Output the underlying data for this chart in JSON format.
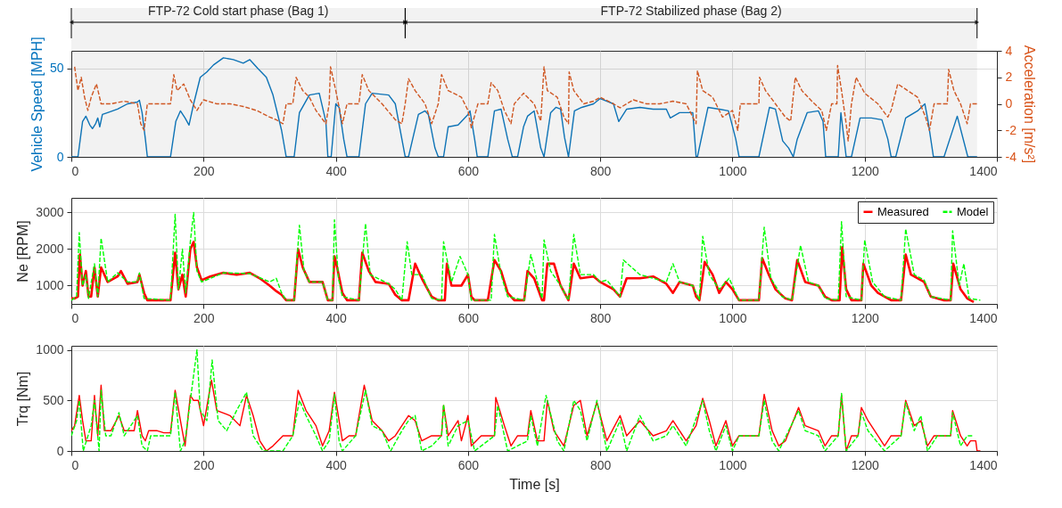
{
  "chart_data": [
    {
      "type": "line",
      "xlim": [
        0,
        1400
      ],
      "xticks": [
        0,
        200,
        400,
        600,
        800,
        1000,
        1200,
        1400
      ],
      "ylim": [
        0,
        60
      ],
      "yticks": [
        0,
        50
      ],
      "y2lim": [
        -4,
        4
      ],
      "y2ticks": [
        -4,
        -2,
        0,
        2,
        4
      ],
      "ylabel": "Vehicle Speed [MPH]",
      "y2label": "Acceleration [m/s²]",
      "grid": true,
      "legend": false,
      "bands": [
        {
          "axis": "x",
          "from": 0,
          "to": 505,
          "label": "FTP-72 Cold start phase (Bag 1)"
        },
        {
          "axis": "x",
          "from": 505,
          "to": 1370,
          "label": "FTP-72 Stabilized phase (Bag 2)"
        }
      ],
      "series": [
        {
          "color": "#0072bd",
          "line_style": "solid",
          "x": [
            0,
            10,
            17,
            22,
            28,
            32,
            37,
            40,
            43,
            47,
            55,
            70,
            85,
            100,
            103,
            107,
            112,
            115,
            150,
            158,
            165,
            172,
            178,
            185,
            195,
            205,
            215,
            230,
            245,
            260,
            270,
            282,
            295,
            305,
            318,
            325,
            337,
            345,
            360,
            375,
            385,
            388,
            393,
            400,
            405,
            412,
            417,
            435,
            445,
            455,
            480,
            490,
            500,
            505,
            510,
            525,
            535,
            540,
            550,
            555,
            563,
            570,
            585,
            600,
            603,
            610,
            614,
            630,
            640,
            650,
            660,
            667,
            675,
            684,
            690,
            700,
            710,
            715,
            725,
            733,
            740,
            746,
            752,
            761,
            772,
            790,
            800,
            820,
            828,
            840,
            860,
            880,
            900,
            906,
            920,
            940,
            945,
            947,
            963,
            980,
            994,
            1005,
            1010,
            1040,
            1056,
            1065,
            1076,
            1085,
            1092,
            1098,
            1113,
            1130,
            1137,
            1141,
            1160,
            1164,
            1172,
            1180,
            1193,
            1210,
            1226,
            1235,
            1240,
            1247,
            1262,
            1280,
            1291,
            1296,
            1304,
            1320,
            1340,
            1356,
            1370
          ],
          "values": [
            0,
            0,
            20,
            23,
            18,
            16,
            19,
            22,
            17,
            24,
            25,
            27,
            30,
            31,
            32,
            25,
            10,
            0,
            0,
            20,
            26,
            22,
            18,
            30,
            45,
            48,
            52,
            56,
            55,
            53,
            55,
            50,
            45,
            35,
            15,
            0,
            0,
            25,
            35,
            36,
            20,
            0,
            0,
            30,
            28,
            10,
            0,
            0,
            30,
            36,
            35,
            30,
            10,
            0,
            0,
            24,
            26,
            24,
            5,
            0,
            0,
            17,
            18,
            24,
            26,
            10,
            0,
            0,
            26,
            27,
            10,
            0,
            0,
            17,
            23,
            26,
            5,
            0,
            25,
            28,
            27,
            11,
            0,
            26,
            28,
            30,
            33,
            30,
            20,
            27,
            28,
            27,
            27,
            22,
            25,
            25,
            0,
            0,
            28,
            27,
            26,
            10,
            0,
            0,
            28,
            27,
            9,
            5,
            0,
            10,
            25,
            26,
            20,
            0,
            0,
            25,
            0,
            0,
            22,
            22,
            21,
            10,
            0,
            0,
            22,
            26,
            30,
            20,
            0,
            0,
            23,
            0,
            0
          ]
        },
        {
          "color": "#d95319",
          "line_style": "dashed",
          "axis": "y2",
          "x": [
            5,
            10,
            15,
            20,
            25,
            30,
            38,
            45,
            60,
            80,
            100,
            105,
            110,
            115,
            150,
            155,
            160,
            170,
            180,
            190,
            200,
            220,
            240,
            260,
            280,
            300,
            310,
            320,
            325,
            335,
            340,
            350,
            360,
            370,
            385,
            390,
            392,
            400,
            410,
            417,
            435,
            440,
            450,
            470,
            490,
            500,
            505,
            510,
            520,
            535,
            545,
            555,
            560,
            570,
            590,
            600,
            605,
            615,
            630,
            635,
            645,
            655,
            665,
            670,
            684,
            700,
            710,
            715,
            720,
            735,
            745,
            752,
            753,
            760,
            775,
            790,
            800,
            820,
            830,
            850,
            870,
            890,
            910,
            930,
            945,
            947,
            955,
            970,
            985,
            1000,
            1008,
            1012,
            1040,
            1041,
            1050,
            1065,
            1080,
            1088,
            1095,
            1105,
            1120,
            1135,
            1142,
            1150,
            1158,
            1159,
            1165,
            1172,
            1175,
            1180,
            1187,
            1200,
            1220,
            1235,
            1240,
            1250,
            1265,
            1280,
            1292,
            1298,
            1305,
            1325,
            1327,
            1335,
            1345,
            1355,
            1360,
            1370
          ],
          "values": [
            2.8,
            1,
            2,
            0.5,
            -0.5,
            0.5,
            1.5,
            0,
            0,
            0.2,
            0,
            -1.5,
            -2,
            0,
            0,
            2.2,
            1,
            1.5,
            0.3,
            -0.5,
            0.3,
            0,
            0,
            -0.2,
            -0.5,
            -1,
            -1.2,
            -1.5,
            0,
            0,
            2,
            1,
            0.5,
            -0.5,
            -1.5,
            0,
            2.8,
            1,
            -1.5,
            0,
            0,
            2.2,
            1,
            0,
            -1.2,
            -1.5,
            0,
            1.9,
            1,
            0,
            -1.5,
            0,
            2.2,
            1,
            0.5,
            -0.5,
            -1.8,
            0,
            0,
            1.6,
            1,
            -0.5,
            -1.5,
            0,
            0.8,
            0,
            -1.3,
            2.8,
            1,
            0.5,
            -1,
            -1.5,
            2.4,
            1,
            0,
            0.2,
            0.5,
            0,
            -0.3,
            0.3,
            0,
            0,
            0.2,
            0,
            -1.5,
            2.5,
            1,
            0.5,
            -1,
            -0.5,
            -2,
            0,
            0,
            2,
            1,
            0,
            -1,
            -1.3,
            2,
            1,
            0.2,
            -0.5,
            -2,
            0,
            0,
            2.9,
            1,
            -1.5,
            -2.8,
            0,
            2,
            0.8,
            0,
            -1,
            -0.5,
            1.5,
            1,
            0.5,
            -1,
            -2,
            0,
            0,
            2.6,
            1,
            0,
            -1.5,
            0,
            0
          ]
        }
      ]
    },
    {
      "type": "line",
      "xlim": [
        0,
        1400
      ],
      "xticks": [
        0,
        200,
        400,
        600,
        800,
        1000,
        1200,
        1400
      ],
      "ylim": [
        500,
        3400
      ],
      "yticks": [
        1000,
        2000,
        3000
      ],
      "ylabel": "Ne [RPM]",
      "grid": true,
      "legend": "top right",
      "series": [
        {
          "name": "Measured",
          "color": "#ff0000",
          "line_style": "solid",
          "x": [
            0,
            5,
            10,
            13,
            17,
            22,
            26,
            30,
            35,
            40,
            45,
            55,
            70,
            75,
            85,
            100,
            103,
            110,
            115,
            150,
            157,
            162,
            168,
            173,
            180,
            185,
            190,
            197,
            210,
            230,
            250,
            270,
            285,
            300,
            310,
            318,
            325,
            337,
            343,
            350,
            360,
            380,
            388,
            395,
            398,
            402,
            410,
            417,
            435,
            440,
            450,
            460,
            480,
            490,
            500,
            510,
            520,
            530,
            545,
            555,
            565,
            568,
            575,
            590,
            600,
            605,
            610,
            630,
            640,
            650,
            660,
            670,
            685,
            690,
            700,
            712,
            715,
            720,
            730,
            740,
            752,
            760,
            770,
            790,
            800,
            820,
            830,
            840,
            860,
            880,
            900,
            910,
            920,
            940,
            945,
            950,
            958,
            970,
            980,
            990,
            1000,
            1010,
            1040,
            1045,
            1055,
            1065,
            1080,
            1090,
            1098,
            1110,
            1130,
            1140,
            1150,
            1162,
            1166,
            1172,
            1180,
            1195,
            1198,
            1210,
            1220,
            1240,
            1255,
            1262,
            1270,
            1290,
            1300,
            1320,
            1330,
            1334,
            1345,
            1355,
            1365
          ],
          "values": [
            650,
            650,
            700,
            1850,
            1000,
            1400,
            700,
            700,
            1500,
            700,
            1500,
            1100,
            1250,
            1400,
            1050,
            1100,
            1300,
            800,
            600,
            600,
            1900,
            900,
            1300,
            700,
            2000,
            2200,
            1500,
            1150,
            1250,
            1350,
            1300,
            1350,
            1200,
            1000,
            850,
            750,
            600,
            600,
            2000,
            1500,
            1100,
            1100,
            600,
            600,
            1800,
            1500,
            800,
            600,
            600,
            1900,
            1400,
            1100,
            1050,
            750,
            600,
            600,
            1600,
            1200,
            700,
            600,
            600,
            1600,
            1000,
            1000,
            1300,
            700,
            600,
            600,
            1700,
            1400,
            800,
            600,
            600,
            1400,
            1200,
            600,
            600,
            1600,
            1600,
            1000,
            600,
            1600,
            1200,
            1250,
            1100,
            900,
            700,
            1200,
            1200,
            1250,
            1050,
            800,
            1100,
            1000,
            700,
            600,
            1650,
            1300,
            800,
            1100,
            900,
            600,
            600,
            1750,
            1300,
            900,
            650,
            600,
            1700,
            1100,
            1000,
            700,
            600,
            600,
            2050,
            900,
            600,
            600,
            1600,
            1000,
            800,
            600,
            600,
            1850,
            1300,
            1100,
            700,
            600,
            600,
            1600,
            900,
            650,
            550
          ]
        },
        {
          "name": "Model",
          "color": "#00ff00",
          "line_style": "dashed",
          "x": [
            0,
            8,
            12,
            17,
            22,
            26,
            35,
            40,
            45,
            55,
            70,
            85,
            100,
            103,
            110,
            150,
            157,
            162,
            168,
            173,
            180,
            185,
            190,
            197,
            230,
            270,
            300,
            310,
            318,
            325,
            337,
            345,
            352,
            360,
            380,
            388,
            395,
            398,
            404,
            410,
            435,
            445,
            452,
            480,
            490,
            500,
            508,
            515,
            530,
            545,
            560,
            563,
            575,
            588,
            600,
            605,
            635,
            640,
            650,
            660,
            685,
            695,
            705,
            712,
            715,
            725,
            740,
            752,
            760,
            770,
            790,
            800,
            810,
            830,
            835,
            860,
            880,
            900,
            910,
            920,
            940,
            950,
            955,
            965,
            980,
            995,
            1010,
            1040,
            1048,
            1058,
            1075,
            1090,
            1103,
            1115,
            1130,
            1140,
            1160,
            1165,
            1172,
            1195,
            1200,
            1212,
            1230,
            1255,
            1262,
            1275,
            1290,
            1300,
            1330,
            1333,
            1343,
            1350,
            1358,
            1375
          ],
          "values": [
            600,
            700,
            2450,
            1000,
            1300,
            650,
            1600,
            700,
            2300,
            1100,
            1350,
            1100,
            1100,
            1350,
            650,
            600,
            2950,
            900,
            2000,
            800,
            2200,
            3000,
            1400,
            1100,
            1350,
            1330,
            1100,
            1200,
            800,
            600,
            600,
            2650,
            1400,
            1100,
            1100,
            600,
            600,
            2800,
            1200,
            700,
            600,
            2700,
            1300,
            1050,
            900,
            600,
            2200,
            1300,
            1300,
            650,
            600,
            2200,
            1100,
            1800,
            1300,
            600,
            600,
            2400,
            1300,
            700,
            600,
            1850,
            1100,
            650,
            2250,
            1400,
            1000,
            600,
            2400,
            1300,
            1300,
            1100,
            1150,
            700,
            1700,
            1300,
            1200,
            1100,
            1600,
            1100,
            1000,
            600,
            2350,
            1300,
            900,
            1200,
            600,
            600,
            2600,
            1200,
            700,
            600,
            2100,
            1100,
            1000,
            650,
            600,
            2750,
            700,
            600,
            2250,
            1100,
            700,
            600,
            2550,
            1300,
            1150,
            700,
            600,
            2500,
            1000,
            1600,
            650,
            600
          ]
        }
      ]
    },
    {
      "type": "line",
      "xlim": [
        0,
        1400
      ],
      "xticks": [
        0,
        200,
        400,
        600,
        800,
        1000,
        1200,
        1400
      ],
      "ylim": [
        0,
        1040
      ],
      "yticks": [
        0,
        500,
        1000
      ],
      "xlabel": "Time [s]",
      "ylabel": "Trq [Nm]",
      "grid": true,
      "legend": false,
      "series": [
        {
          "color": "#ff0000",
          "line_style": "solid",
          "x": [
            0,
            5,
            12,
            17,
            22,
            30,
            35,
            40,
            45,
            50,
            60,
            72,
            80,
            95,
            100,
            107,
            112,
            117,
            130,
            140,
            150,
            157,
            165,
            172,
            180,
            185,
            192,
            200,
            212,
            220,
            240,
            255,
            265,
            275,
            285,
            295,
            305,
            320,
            335,
            343,
            355,
            370,
            380,
            390,
            398,
            405,
            410,
            420,
            430,
            443,
            455,
            470,
            480,
            490,
            500,
            510,
            520,
            530,
            545,
            560,
            563,
            570,
            585,
            590,
            600,
            605,
            620,
            640,
            642,
            655,
            665,
            675,
            690,
            695,
            705,
            715,
            720,
            730,
            745,
            760,
            770,
            780,
            795,
            810,
            830,
            840,
            860,
            880,
            900,
            910,
            930,
            945,
            955,
            965,
            975,
            990,
            1000,
            1010,
            1040,
            1048,
            1060,
            1070,
            1080,
            1100,
            1110,
            1130,
            1140,
            1150,
            1160,
            1165,
            1172,
            1180,
            1190,
            1195,
            1205,
            1220,
            1230,
            1240,
            1255,
            1262,
            1275,
            1285,
            1295,
            1305,
            1330,
            1333,
            1345,
            1355,
            1360,
            1368,
            1370,
            1375
          ],
          "values": [
            200,
            250,
            550,
            300,
            100,
            100,
            550,
            150,
            650,
            200,
            200,
            350,
            200,
            200,
            400,
            150,
            100,
            200,
            200,
            180,
            180,
            600,
            300,
            50,
            550,
            500,
            500,
            250,
            700,
            400,
            350,
            250,
            550,
            350,
            100,
            0,
            50,
            150,
            150,
            600,
            400,
            250,
            50,
            200,
            580,
            300,
            100,
            150,
            150,
            650,
            300,
            200,
            100,
            150,
            250,
            350,
            300,
            100,
            150,
            150,
            450,
            150,
            300,
            100,
            350,
            50,
            150,
            150,
            530,
            250,
            50,
            150,
            150,
            400,
            100,
            100,
            500,
            200,
            50,
            450,
            500,
            150,
            480,
            100,
            350,
            150,
            300,
            150,
            200,
            300,
            100,
            250,
            520,
            300,
            50,
            300,
            50,
            150,
            150,
            560,
            200,
            50,
            100,
            430,
            250,
            200,
            50,
            150,
            150,
            550,
            0,
            150,
            150,
            430,
            300,
            150,
            50,
            150,
            150,
            500,
            250,
            300,
            50,
            150,
            150,
            400,
            150,
            50,
            100,
            100,
            0,
            0
          ]
        },
        {
          "color": "#00ff00",
          "line_style": "dashed",
          "x": [
            0,
            8,
            12,
            18,
            30,
            35,
            42,
            45,
            52,
            60,
            72,
            80,
            100,
            107,
            115,
            120,
            150,
            157,
            165,
            172,
            180,
            190,
            195,
            205,
            213,
            222,
            235,
            250,
            265,
            275,
            290,
            320,
            335,
            345,
            355,
            370,
            380,
            390,
            398,
            405,
            410,
            430,
            445,
            455,
            470,
            483,
            500,
            510,
            520,
            530,
            545,
            560,
            563,
            570,
            585,
            600,
            610,
            640,
            645,
            660,
            690,
            695,
            705,
            718,
            735,
            745,
            760,
            770,
            780,
            795,
            810,
            830,
            840,
            860,
            880,
            900,
            910,
            930,
            955,
            965,
            975,
            990,
            1000,
            1010,
            1040,
            1048,
            1060,
            1070,
            1100,
            1110,
            1130,
            1140,
            1160,
            1165,
            1172,
            1190,
            1195,
            1205,
            1230,
            1255,
            1262,
            1275,
            1285,
            1295,
            1310,
            1330,
            1333,
            1345,
            1355,
            1365
          ],
          "values": [
            150,
            300,
            500,
            0,
            250,
            500,
            0,
            600,
            150,
            150,
            380,
            150,
            350,
            50,
            0,
            150,
            150,
            580,
            0,
            100,
            500,
            1000,
            400,
            300,
            900,
            300,
            200,
            400,
            580,
            150,
            0,
            0,
            150,
            500,
            350,
            150,
            0,
            100,
            560,
            100,
            0,
            150,
            600,
            250,
            200,
            0,
            200,
            300,
            350,
            0,
            50,
            150,
            460,
            50,
            250,
            300,
            0,
            150,
            450,
            0,
            100,
            350,
            50,
            550,
            100,
            0,
            500,
            400,
            100,
            500,
            0,
            300,
            0,
            350,
            100,
            150,
            250,
            50,
            500,
            200,
            0,
            250,
            0,
            150,
            150,
            500,
            100,
            0,
            400,
            200,
            150,
            0,
            150,
            570,
            0,
            150,
            380,
            200,
            0,
            150,
            480,
            200,
            350,
            0,
            150,
            150,
            380,
            50,
            150,
            150
          ]
        }
      ]
    }
  ]
}
